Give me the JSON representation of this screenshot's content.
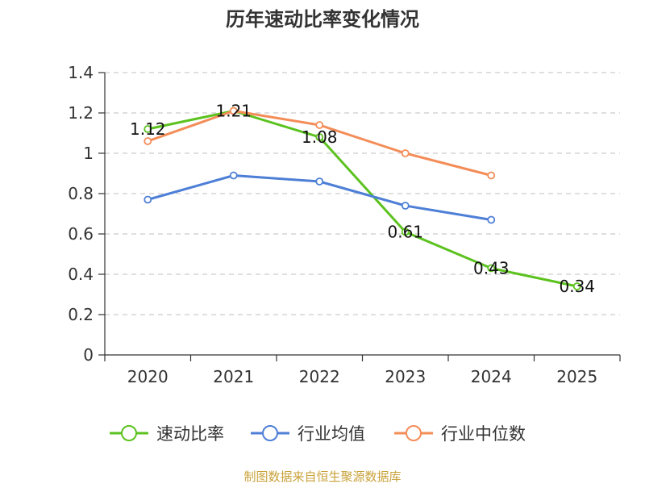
{
  "chart_data": {
    "type": "line",
    "title": "历年速动比率变化情况",
    "categories": [
      "2020",
      "2021",
      "2022",
      "2023",
      "2024",
      "2025"
    ],
    "ylim": [
      0,
      1.4
    ],
    "yticks": [
      0,
      0.2,
      0.4,
      0.6,
      0.8,
      1,
      1.2,
      1.4
    ],
    "ytick_labels": [
      "0",
      "0.2",
      "0.4",
      "0.6",
      "0.8",
      "1",
      "1.2",
      "1.4"
    ],
    "grid": true,
    "legend_position": "bottom-center",
    "series": [
      {
        "name": "速动比率",
        "color": "#5cc21f",
        "values": [
          1.12,
          1.21,
          1.08,
          0.61,
          0.43,
          0.34
        ],
        "labels": [
          "1.12",
          "1.21",
          "1.08",
          "0.61",
          "0.43",
          "0.34"
        ]
      },
      {
        "name": "行业均值",
        "color": "#4e7fd6",
        "values": [
          0.77,
          0.89,
          0.86,
          0.74,
          0.67,
          null
        ]
      },
      {
        "name": "行业中位数",
        "color": "#f48c57",
        "values": [
          1.06,
          1.21,
          1.14,
          1.0,
          0.89,
          null
        ]
      }
    ]
  },
  "source_text": "制图数据来自恒生聚源数据库",
  "source_color": "#c9a23a"
}
